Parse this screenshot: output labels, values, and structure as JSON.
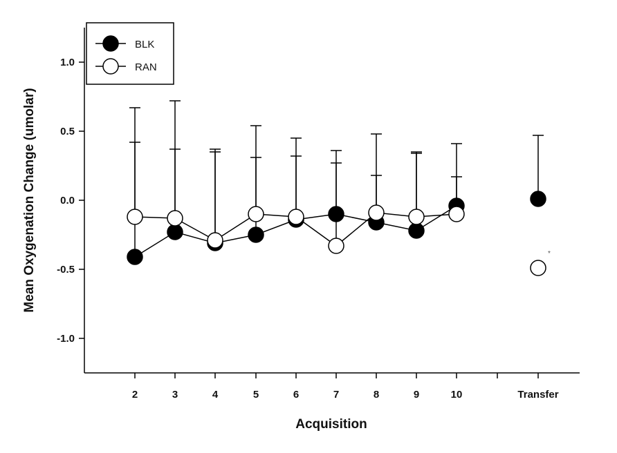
{
  "chart_data": {
    "type": "line",
    "title": "",
    "xlabel": "Acquisition",
    "ylabel": "Mean Oxygenation Change (umolar)",
    "categories": [
      "2",
      "3",
      "4",
      "5",
      "6",
      "7",
      "8",
      "9",
      "10",
      "Transfer"
    ],
    "yticks": [
      "1.0",
      "0.5",
      "0.0",
      "-0.5",
      "-1.0"
    ],
    "ylim": [
      -1.25,
      1.25
    ],
    "grid": false,
    "legend_position": "top-left",
    "series": [
      {
        "name": "BLK",
        "marker": "filled-circle",
        "color": "#000000",
        "values": [
          -0.41,
          -0.23,
          -0.31,
          -0.25,
          -0.14,
          -0.1,
          -0.16,
          -0.22,
          -0.04,
          0.01
        ],
        "error_upper": [
          0.42,
          0.37,
          0.37,
          0.31,
          0.32,
          0.36,
          0.18,
          0.35,
          0.17,
          0.47
        ]
      },
      {
        "name": "RAN",
        "marker": "open-circle",
        "color": "#ffffff",
        "values": [
          -0.12,
          -0.13,
          -0.29,
          -0.1,
          -0.12,
          -0.33,
          -0.09,
          -0.12,
          -0.1,
          -0.49
        ],
        "error_upper": [
          0.67,
          0.72,
          0.35,
          0.54,
          0.45,
          0.27,
          0.48,
          0.34,
          0.41,
          null
        ]
      }
    ],
    "annotations": [
      {
        "text": "*",
        "category": "Transfer",
        "series": "RAN"
      }
    ]
  }
}
